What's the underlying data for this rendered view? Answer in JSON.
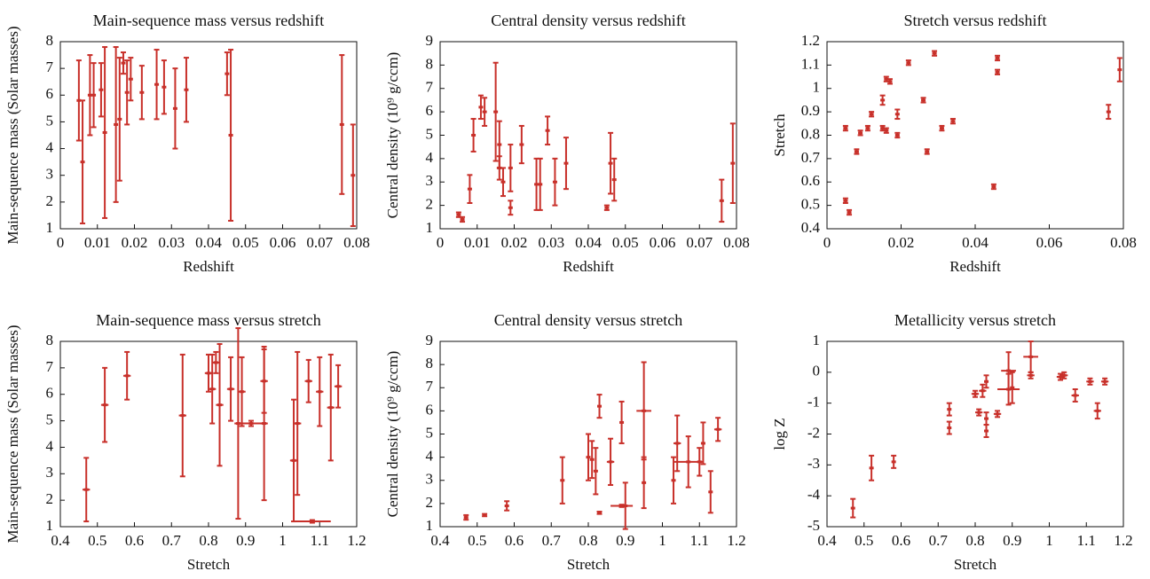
{
  "chart_data": [
    {
      "type": "errorbar",
      "title": "Main-sequence mass versus redshift",
      "xlabel": "Redshift",
      "ylabel": "Main-sequence mass (Solar masses)",
      "color": "#c8302a",
      "x": [
        0.005,
        0.006,
        0.008,
        0.009,
        0.011,
        0.012,
        0.015,
        0.016,
        0.017,
        0.018,
        0.019,
        0.022,
        0.026,
        0.028,
        0.031,
        0.034,
        0.045,
        0.046,
        0.076,
        0.079
      ],
      "values": [
        5.8,
        3.5,
        6.0,
        6.0,
        6.2,
        4.6,
        4.9,
        5.1,
        7.2,
        6.1,
        6.6,
        6.1,
        6.4,
        6.3,
        5.5,
        6.2,
        6.8,
        4.5,
        4.9,
        3.0
      ],
      "yerr": [
        1.5,
        2.3,
        1.5,
        1.2,
        1.0,
        3.2,
        2.9,
        2.3,
        0.4,
        1.2,
        0.8,
        1.0,
        1.3,
        1.0,
        1.5,
        1.2,
        0.8,
        3.2,
        2.6,
        1.9
      ],
      "xlim": [
        0,
        0.08
      ],
      "xticks": [
        0,
        0.01,
        0.02,
        0.03,
        0.04,
        0.05,
        0.06,
        0.07,
        0.08
      ],
      "ylim": [
        1,
        8
      ],
      "yticks": [
        1,
        2,
        3,
        4,
        5,
        6,
        7,
        8
      ]
    },
    {
      "type": "errorbar",
      "title": "Central density versus redshift",
      "xlabel": "Redshift",
      "ylabel": "Central density (10⁹ g/ccm)",
      "color": "#c8302a",
      "x": [
        0.005,
        0.006,
        0.008,
        0.009,
        0.011,
        0.012,
        0.015,
        0.016,
        0.016,
        0.017,
        0.019,
        0.019,
        0.022,
        0.026,
        0.027,
        0.029,
        0.031,
        0.034,
        0.045,
        0.046,
        0.047,
        0.076,
        0.079
      ],
      "values": [
        1.6,
        1.4,
        2.7,
        5.0,
        6.2,
        6.0,
        6.0,
        4.6,
        3.6,
        3.0,
        3.6,
        1.9,
        4.6,
        2.9,
        2.9,
        5.2,
        3.0,
        3.8,
        1.9,
        3.8,
        3.1,
        2.2,
        3.8
      ],
      "yerr": [
        0.1,
        0.1,
        0.6,
        0.7,
        0.5,
        0.6,
        2.1,
        1.0,
        0.5,
        0.6,
        1.0,
        0.3,
        0.8,
        1.1,
        1.1,
        0.6,
        1.0,
        1.1,
        0.1,
        1.3,
        0.9,
        0.9,
        1.7
      ],
      "xlim": [
        0,
        0.08
      ],
      "xticks": [
        0,
        0.01,
        0.02,
        0.03,
        0.04,
        0.05,
        0.06,
        0.07,
        0.08
      ],
      "ylim": [
        1,
        9
      ],
      "yticks": [
        1,
        2,
        3,
        4,
        5,
        6,
        7,
        8,
        9
      ]
    },
    {
      "type": "errorbar",
      "title": "Stretch versus redshift",
      "xlabel": "Redshift",
      "ylabel": "Stretch",
      "color": "#c8302a",
      "x": [
        0.005,
        0.005,
        0.006,
        0.008,
        0.009,
        0.011,
        0.012,
        0.015,
        0.015,
        0.016,
        0.016,
        0.017,
        0.019,
        0.019,
        0.022,
        0.026,
        0.027,
        0.029,
        0.031,
        0.034,
        0.045,
        0.046,
        0.046,
        0.076,
        0.079
      ],
      "values": [
        0.52,
        0.83,
        0.47,
        0.73,
        0.81,
        0.83,
        0.89,
        0.95,
        0.83,
        0.82,
        1.04,
        1.03,
        0.89,
        0.8,
        1.11,
        0.95,
        0.73,
        1.15,
        0.83,
        0.86,
        0.58,
        1.13,
        1.07,
        0.9,
        1.08
      ],
      "yerr": [
        0.01,
        0.01,
        0.01,
        0.01,
        0.01,
        0.01,
        0.01,
        0.02,
        0.01,
        0.01,
        0.01,
        0.01,
        0.02,
        0.01,
        0.01,
        0.01,
        0.01,
        0.01,
        0.01,
        0.01,
        0.01,
        0.01,
        0.01,
        0.03,
        0.05
      ],
      "xlim": [
        0,
        0.08
      ],
      "xticks": [
        0,
        0.02,
        0.04,
        0.06,
        0.08
      ],
      "ylim": [
        0.4,
        1.2
      ],
      "yticks": [
        0.4,
        0.5,
        0.6,
        0.7,
        0.8,
        0.9,
        1,
        1.1,
        1.2
      ]
    },
    {
      "type": "errorbar",
      "title": "Main-sequence mass versus stretch",
      "xlabel": "Stretch",
      "ylabel": "Main-sequence mass (Solar masses)",
      "color": "#c8302a",
      "x": [
        0.47,
        0.52,
        0.58,
        0.73,
        0.8,
        0.81,
        0.82,
        0.83,
        0.86,
        0.88,
        0.89,
        0.915,
        0.95,
        0.95,
        1.03,
        1.04,
        1.07,
        1.1,
        1.13,
        1.15,
        1.08
      ],
      "values": [
        2.4,
        5.6,
        6.7,
        5.2,
        6.8,
        6.2,
        7.2,
        5.6,
        6.2,
        4.9,
        6.1,
        4.9,
        6.5,
        4.9,
        3.5,
        4.9,
        6.5,
        6.1,
        5.5,
        6.3,
        1.2
      ],
      "yerr": [
        1.2,
        1.4,
        0.9,
        2.3,
        0.7,
        1.3,
        0.4,
        2.3,
        1.2,
        3.6,
        1.3,
        0.1,
        1.2,
        2.9,
        2.3,
        2.7,
        0.8,
        1.3,
        2.0,
        0.8,
        0.05
      ],
      "xerr": [
        0.01,
        0.01,
        0.01,
        0.01,
        0.01,
        0.01,
        0.01,
        0.01,
        0.01,
        0.01,
        0.01,
        0.035,
        0.01,
        0.01,
        0.01,
        0.01,
        0.01,
        0.01,
        0.01,
        0.01,
        0.05
      ],
      "xlim": [
        0.4,
        1.2
      ],
      "xticks": [
        0.4,
        0.5,
        0.6,
        0.7,
        0.8,
        0.9,
        1,
        1.1,
        1.2
      ],
      "ylim": [
        1,
        8
      ],
      "yticks": [
        1,
        2,
        3,
        4,
        5,
        6,
        7,
        8
      ]
    },
    {
      "type": "errorbar",
      "title": "Central density versus stretch",
      "xlabel": "Stretch",
      "ylabel": "Central density (10⁹ g/ccm)",
      "color": "#c8302a",
      "x": [
        0.47,
        0.52,
        0.58,
        0.73,
        0.8,
        0.81,
        0.82,
        0.83,
        0.83,
        0.86,
        0.89,
        0.89,
        0.9,
        0.95,
        0.95,
        1.03,
        1.04,
        1.07,
        1.1,
        1.11,
        1.13,
        1.15
      ],
      "values": [
        1.4,
        1.5,
        1.9,
        3.0,
        4.0,
        3.9,
        3.4,
        6.2,
        1.6,
        3.8,
        5.5,
        1.9,
        1.9,
        6.0,
        2.9,
        3.0,
        4.6,
        3.8,
        3.8,
        4.6,
        2.5,
        5.2
      ],
      "yerr": [
        0.1,
        0.05,
        0.2,
        1.0,
        1.0,
        0.8,
        1.0,
        0.5,
        0.05,
        1.0,
        0.9,
        0.05,
        1.0,
        2.1,
        1.1,
        1.0,
        1.2,
        1.1,
        0.6,
        0.9,
        0.9,
        0.5
      ],
      "xerr": [
        0.005,
        0.005,
        0.005,
        0.005,
        0.005,
        0.005,
        0.005,
        0.005,
        0.005,
        0.01,
        0.005,
        0.03,
        0.005,
        0.02,
        0.005,
        0.005,
        0.01,
        0.04,
        0.005,
        0.005,
        0.005,
        0.01
      ],
      "xlim": [
        0.4,
        1.2
      ],
      "xticks": [
        0.4,
        0.5,
        0.6,
        0.7,
        0.8,
        0.9,
        1,
        1.1,
        1.2
      ],
      "ylim": [
        1,
        9
      ],
      "yticks": [
        1,
        2,
        3,
        4,
        5,
        6,
        7,
        8,
        9
      ]
    },
    {
      "type": "errorbar",
      "title": "Metallicity versus stretch",
      "xlabel": "Stretch",
      "ylabel": "log Z",
      "color": "#c8302a",
      "x": [
        0.47,
        0.52,
        0.58,
        0.73,
        0.73,
        0.8,
        0.81,
        0.82,
        0.83,
        0.83,
        0.83,
        0.86,
        0.89,
        0.89,
        0.9,
        0.95,
        0.95,
        1.03,
        1.04,
        1.07,
        1.11,
        1.13,
        1.15
      ],
      "values": [
        -4.4,
        -3.1,
        -2.9,
        -1.2,
        -1.8,
        -0.7,
        -1.3,
        -0.6,
        -0.3,
        -1.5,
        -1.9,
        -1.35,
        0.05,
        -0.55,
        -0.5,
        0.5,
        -0.1,
        -0.15,
        -0.1,
        -0.75,
        -0.3,
        -1.25,
        -0.3
      ],
      "yerr": [
        0.3,
        0.4,
        0.2,
        0.2,
        0.2,
        0.1,
        0.1,
        0.2,
        0.2,
        0.2,
        0.2,
        0.1,
        0.6,
        0.5,
        0.5,
        0.5,
        0.1,
        0.1,
        0.1,
        0.2,
        0.1,
        0.25,
        0.1
      ],
      "xerr": [
        0.005,
        0.005,
        0.005,
        0.005,
        0.005,
        0.01,
        0.01,
        0.01,
        0.005,
        0.005,
        0.005,
        0.01,
        0.02,
        0.03,
        0.005,
        0.02,
        0.01,
        0.01,
        0.01,
        0.01,
        0.01,
        0.01,
        0.01
      ],
      "xlim": [
        0.4,
        1.2
      ],
      "xticks": [
        0.4,
        0.5,
        0.6,
        0.7,
        0.8,
        0.9,
        1,
        1.1,
        1.2
      ],
      "ylim": [
        -5,
        1
      ],
      "yticks": [
        -5,
        -4,
        -3,
        -2,
        -1,
        0,
        1
      ]
    }
  ]
}
